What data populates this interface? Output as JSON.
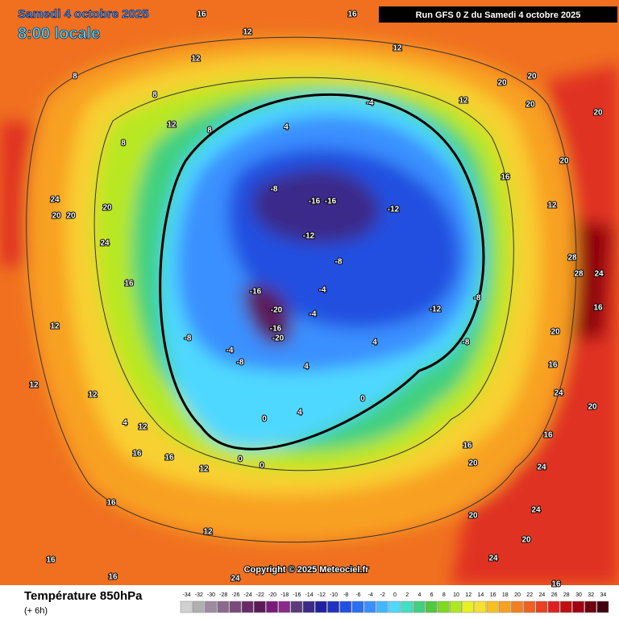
{
  "header": {
    "date": "Samedi 4 octobre 2025",
    "time": "8:00 locale",
    "run": "Run GFS 0 Z du Samedi 4 octobre 2025"
  },
  "copyright": "Copyright © 2025 Meteociel.fr",
  "footer": {
    "title": "Température 850hPa",
    "step": "(+ 6h)"
  },
  "legend": {
    "values": [
      -34,
      -32,
      -30,
      -28,
      -26,
      -24,
      -22,
      -20,
      -18,
      -16,
      -14,
      -12,
      -10,
      -8,
      -6,
      -4,
      -2,
      0,
      2,
      4,
      6,
      8,
      10,
      12,
      14,
      16,
      18,
      20,
      22,
      24,
      26,
      28,
      30,
      32,
      34
    ],
    "colors": [
      "#d0d0d0",
      "#b0b0b0",
      "#a08aa0",
      "#8a6a8a",
      "#7a4a7a",
      "#6a2a6a",
      "#5a1a5a",
      "#7a1a7a",
      "#8a2a8a",
      "#5a3a7a",
      "#3a2a8a",
      "#2020a0",
      "#2030c0",
      "#2050e0",
      "#2a70f0",
      "#3a90ff",
      "#40b8ff",
      "#50d8ff",
      "#40e0c0",
      "#40d080",
      "#50c840",
      "#80d820",
      "#b0e820",
      "#e8f020",
      "#f8e030",
      "#f8c020",
      "#f8a020",
      "#f08020",
      "#f06020",
      "#e84020",
      "#e02020",
      "#c01010",
      "#a00010",
      "#700010",
      "#400010"
    ]
  },
  "map_labels": [
    16,
    16,
    12,
    12,
    8,
    8,
    12,
    8,
    8,
    4,
    -4,
    12,
    12,
    20,
    20,
    20,
    20,
    20,
    16,
    12,
    28,
    28,
    24,
    16,
    20,
    16,
    24,
    20,
    16,
    24,
    24,
    24,
    20,
    -16,
    -16,
    -12,
    -12,
    -8,
    -12,
    -8,
    -8,
    -8,
    -16,
    -20,
    -16,
    -20,
    -4,
    -4,
    -8,
    -8,
    -4,
    4,
    0,
    0,
    0,
    4,
    0,
    4,
    24,
    20,
    20,
    24,
    12,
    16,
    16,
    12,
    16,
    12,
    16,
    16,
    24,
    20,
    16,
    20,
    16,
    20,
    16,
    12,
    4,
    12,
    12
  ]
}
